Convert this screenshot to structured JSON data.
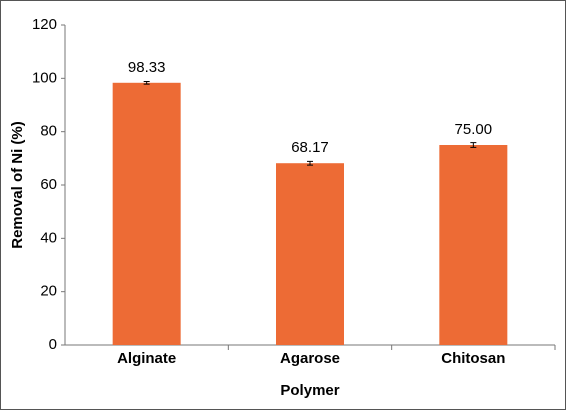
{
  "chart_data": {
    "type": "bar",
    "categories": [
      "Alginate",
      "Agarose",
      "Chitosan"
    ],
    "values": [
      98.33,
      68.17,
      75.0
    ],
    "value_labels": [
      "98.33",
      "68.17",
      "75.00"
    ],
    "errors": [
      0.5,
      0.7,
      0.9
    ],
    "color": "#ed6b35",
    "xlabel": "Polymer",
    "ylabel": "Removal of Ni (%)",
    "ylim": [
      0,
      120
    ],
    "yticks": [
      0,
      20,
      40,
      60,
      80,
      100,
      120
    ],
    "grid": false
  }
}
